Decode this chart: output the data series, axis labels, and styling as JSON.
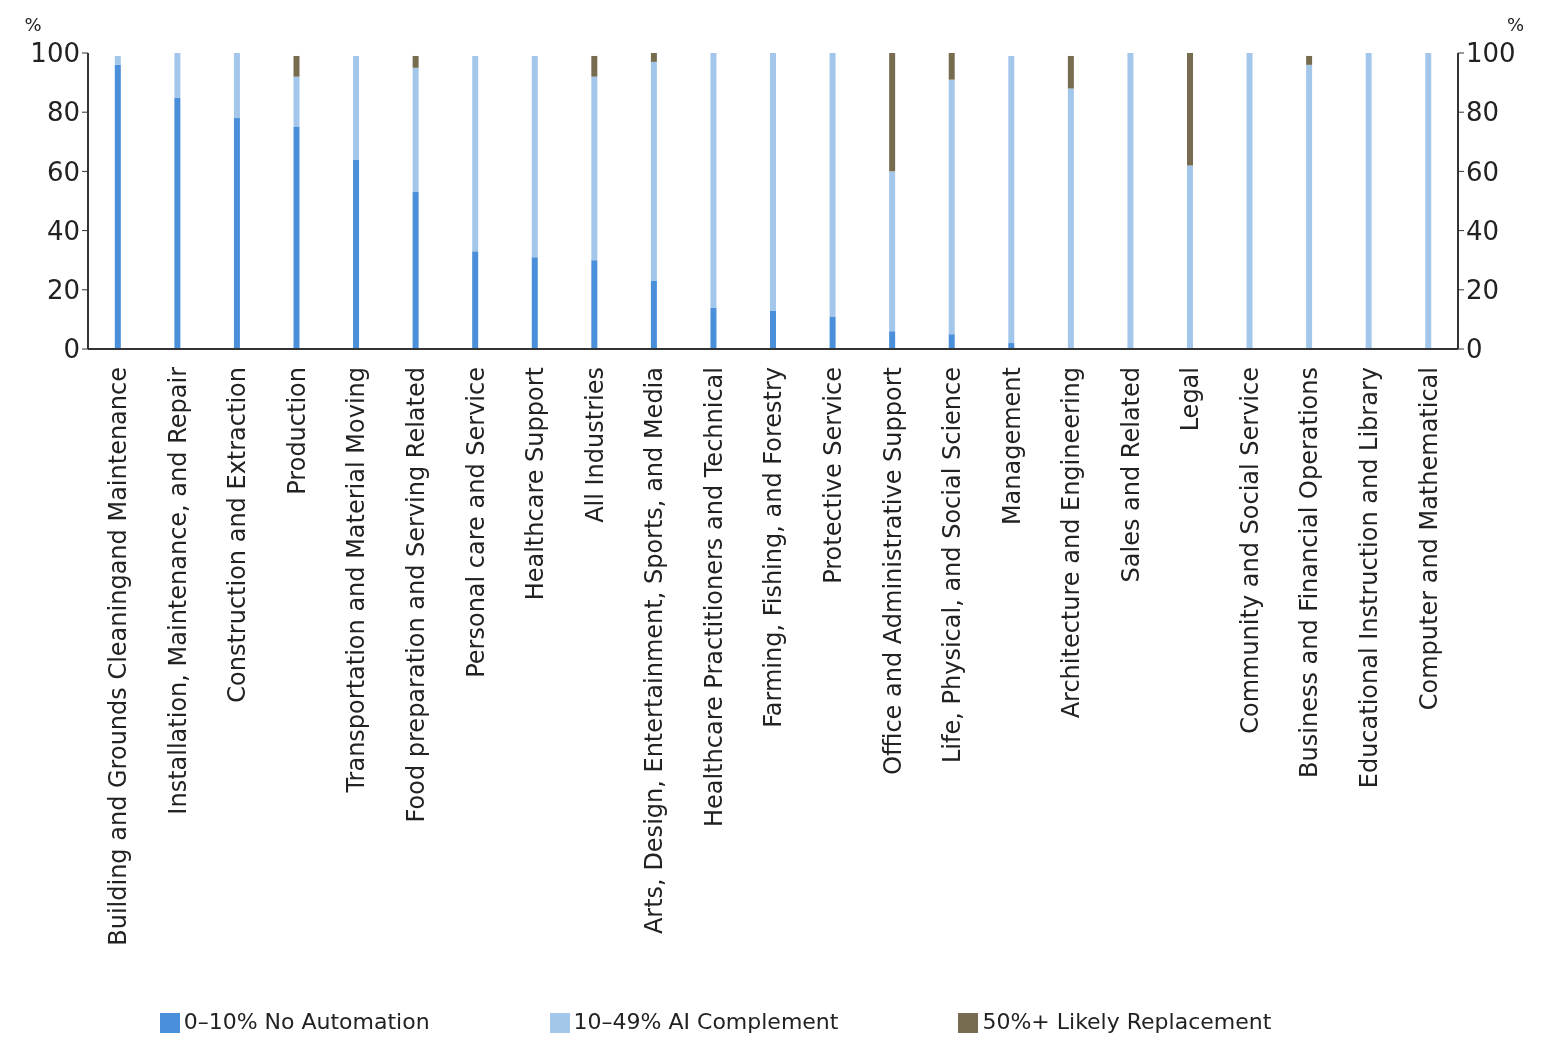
{
  "chart_data": {
    "type": "bar",
    "stacked": true,
    "categories": [
      "Building and Grounds Cleaningand Maintenance",
      "Installation, Maintenance, and Repair",
      "Construction and Extraction",
      "Production",
      "Transportation and Material Moving",
      "Food preparation and Serving Related",
      "Personal care and Service",
      "Healthcare Support",
      "All Industries",
      "Arts, Design, Entertainment, Sports, and Media",
      "Healthcare Practitioners and Technical",
      "Farming, Fishing, and Forestry",
      "Protective Service",
      "Office and Administrative Support",
      "Life, Physical, and Social Science",
      "Management",
      "Architecture and Engineering",
      "Sales and Related",
      "Legal",
      "Community and Social Service",
      "Business and Financial Operations",
      "Educational Instruction and Library",
      "Computer and Mathematical"
    ],
    "series": [
      {
        "name": "0–10% No Automation",
        "color": "#4a8fd9",
        "values": [
          96,
          85,
          78,
          75,
          64,
          53,
          33,
          31,
          30,
          23,
          14,
          13,
          11,
          6,
          5,
          2,
          0,
          0,
          0,
          0,
          0,
          0,
          0
        ]
      },
      {
        "name": "10–49% AI Complement",
        "color": "#a3c7eb",
        "values": [
          3,
          15,
          22,
          17,
          35,
          42,
          66,
          68,
          62,
          74,
          86,
          87,
          89,
          54,
          86,
          97,
          88,
          100,
          62,
          100,
          96,
          100,
          100
        ]
      },
      {
        "name": "50%+ Likely Replacement",
        "color": "#786c50",
        "values": [
          0,
          0,
          0,
          7,
          0,
          4,
          0,
          0,
          7,
          3,
          0,
          0,
          0,
          40,
          9,
          0,
          11,
          0,
          38,
          0,
          3,
          0,
          0
        ]
      }
    ],
    "ylabel": "%",
    "y2label": "%",
    "ylim": [
      0,
      100
    ],
    "yticks": [
      0,
      20,
      40,
      60,
      80,
      100
    ],
    "y2lim": [
      0,
      100
    ],
    "y2ticks": [
      0,
      20,
      40,
      60,
      80,
      100
    ],
    "grid": false,
    "legend": "bottom"
  }
}
